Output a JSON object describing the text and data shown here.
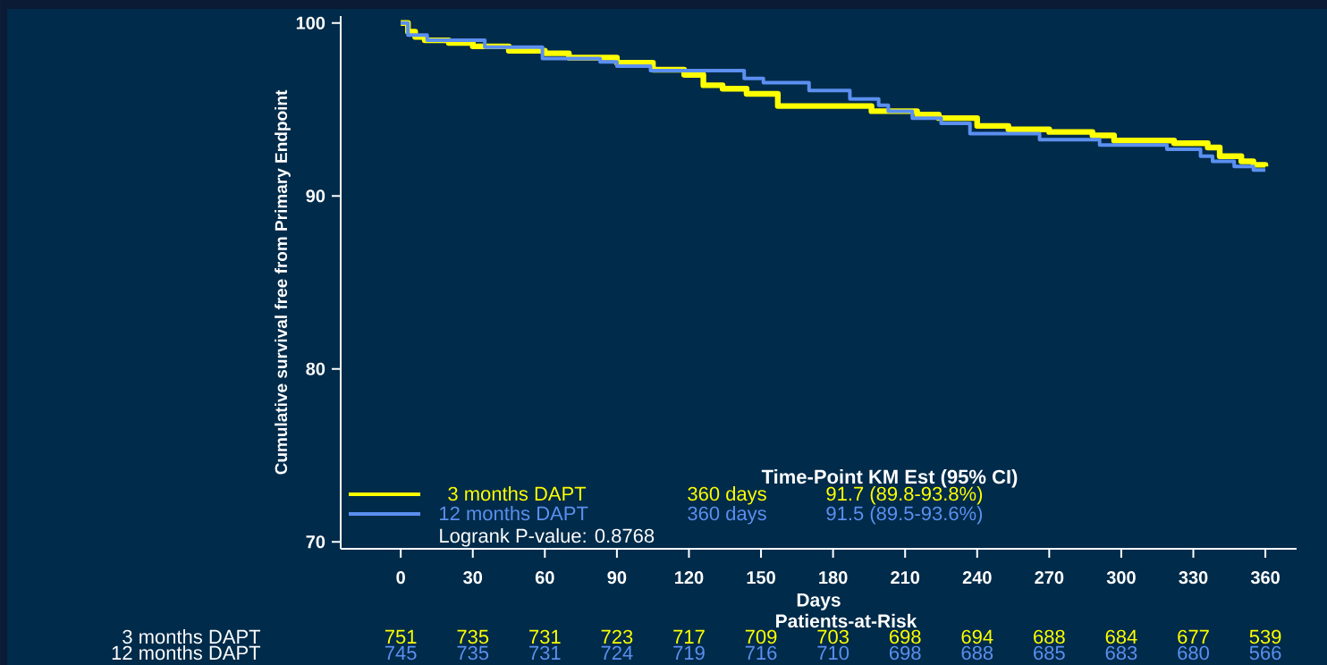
{
  "chart_data": {
    "type": "step",
    "xlabel": "Days",
    "ylabel": "Cumulative survival free from Primary Endpoint",
    "xlim": [
      -25,
      373
    ],
    "ylim": [
      69.6,
      100.4
    ],
    "xticks": [
      0,
      30,
      60,
      90,
      120,
      150,
      180,
      210,
      240,
      270,
      300,
      330,
      360
    ],
    "yticks": [
      70,
      80,
      90,
      100
    ],
    "grid": false,
    "legend": "bottom left",
    "series": [
      {
        "name": "3 months DAPT",
        "color": "#ffff00",
        "x": [
          0,
          3,
          6,
          10,
          20,
          30,
          45,
          60,
          70,
          90,
          105,
          118,
          126,
          134,
          144,
          157,
          196,
          215,
          224,
          240,
          253,
          270,
          288,
          297,
          322,
          336,
          341,
          350,
          355,
          360
        ],
        "values": [
          100,
          99.5,
          99.2,
          99.0,
          98.85,
          98.65,
          98.4,
          98.25,
          98.0,
          97.7,
          97.3,
          97.0,
          96.4,
          96.2,
          95.9,
          95.2,
          94.9,
          94.7,
          94.5,
          94.05,
          93.85,
          93.7,
          93.5,
          93.2,
          93.05,
          92.8,
          92.3,
          92.0,
          91.8,
          91.7
        ]
      },
      {
        "name": "12 months DAPT",
        "color": "#5b8ff0",
        "x": [
          0,
          3,
          11,
          35,
          59,
          83,
          90,
          104,
          143,
          151,
          170,
          187,
          199,
          203,
          213,
          225,
          237,
          266,
          291,
          319,
          333,
          338,
          347,
          355,
          360
        ],
        "values": [
          100,
          99.3,
          99.0,
          98.6,
          97.95,
          97.75,
          97.5,
          97.25,
          96.8,
          96.55,
          96.1,
          95.6,
          95.25,
          94.9,
          94.5,
          94.2,
          93.6,
          93.25,
          92.95,
          92.7,
          92.3,
          92.0,
          91.7,
          91.5,
          91.5
        ]
      }
    ],
    "annotations": [
      "Time-Point  KM Est (95% CI)",
      "360 days",
      "91.7 (89.8-93.8%)",
      "360 days",
      "91.5 (89.5-93.6%)",
      "Logrank P-value: 0.8768",
      "Patients-at-Risk",
      "3 months DAPT",
      "751",
      "735",
      "731",
      "723",
      "717",
      "709",
      "703",
      "698",
      "694",
      "688",
      "684",
      "677",
      "539",
      "12 months DAPT",
      "745",
      "735",
      "731",
      "724",
      "719",
      "716",
      "710",
      "698",
      "688",
      "685",
      "683",
      "680",
      "566"
    ]
  }
}
